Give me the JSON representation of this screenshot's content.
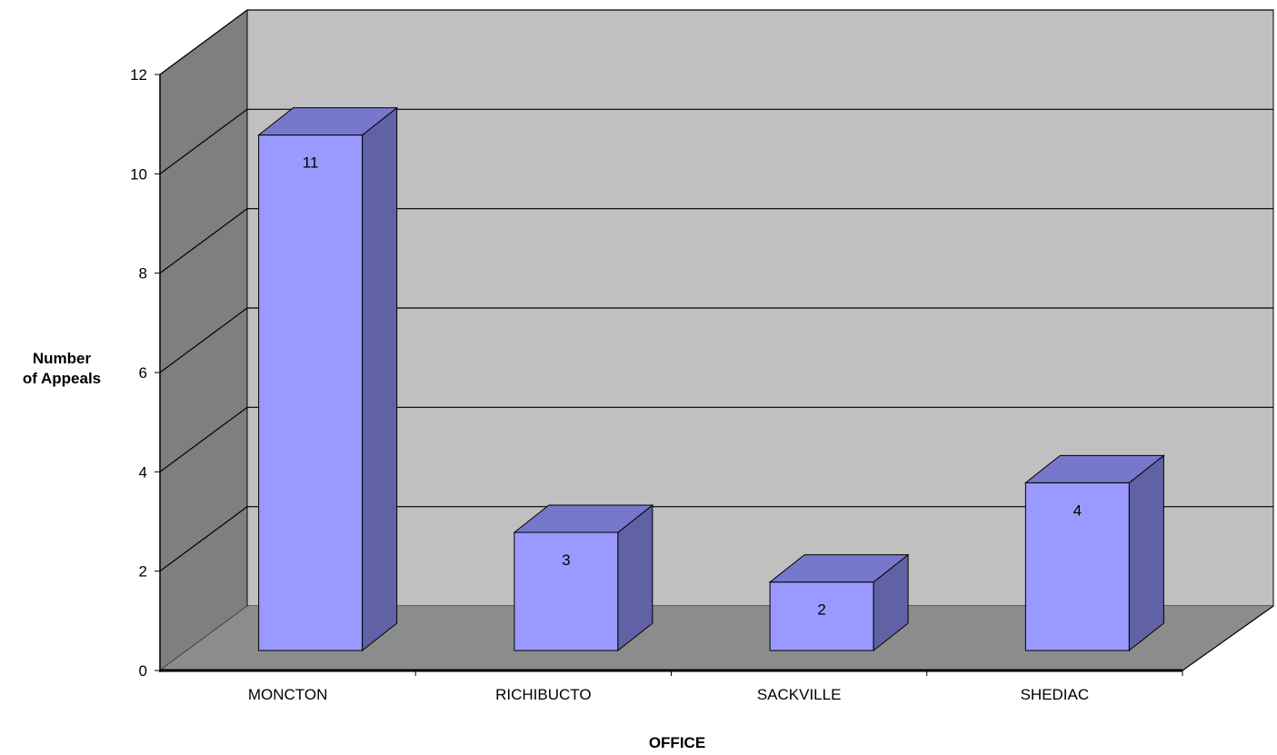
{
  "chart_data": {
    "type": "bar",
    "style": "3d-column",
    "categories": [
      "MONCTON",
      "RICHIBUCTO",
      "SACKVILLE",
      "SHEDIAC"
    ],
    "values": [
      11,
      3,
      2,
      4
    ],
    "data_labels": [
      "11",
      "3",
      "2",
      "4"
    ],
    "xlabel": "OFFICE",
    "ylabel_lines": [
      "Number",
      "of Appeals"
    ],
    "ylim": [
      0,
      12
    ],
    "yticks": [
      0,
      2,
      4,
      6,
      8,
      10,
      12
    ],
    "grid": true,
    "legend": "none",
    "colors": {
      "bar_front": "#9999ff",
      "bar_top": "#7777cc",
      "bar_side": "#6161a5",
      "back_wall": "#c0c0c0",
      "side_wall": "#7f7f7f",
      "floor": "#8c8c8c"
    }
  }
}
